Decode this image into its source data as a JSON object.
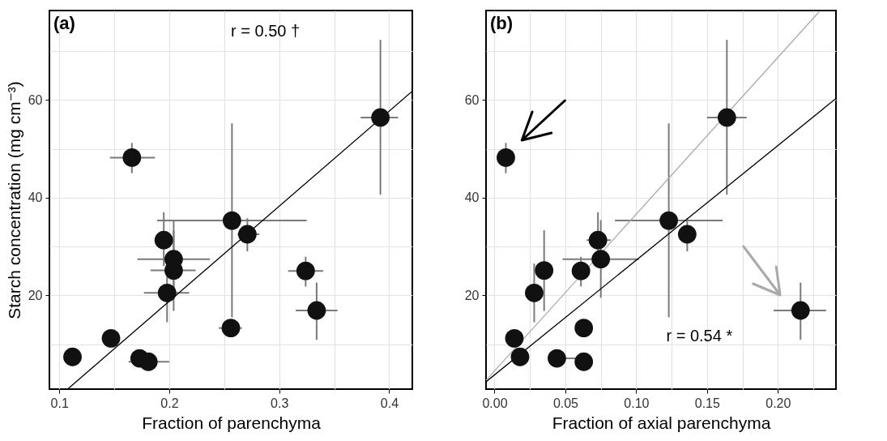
{
  "chart_data": [
    {
      "type": "scatter",
      "title": "(a)",
      "xlabel": "Fraction of parenchyma",
      "ylabel": "Starch concentration (mg cm⁻³)",
      "xlim": [
        0.091,
        0.421
      ],
      "ylim": [
        0.8,
        78.3
      ],
      "xticks": [
        0.1,
        {
          "value": 0.15,
          "label": null
        },
        0.2,
        {
          "value": 0.25,
          "label": null
        },
        0.3,
        {
          "value": 0.35,
          "label": null
        },
        0.4
      ],
      "yticks": [
        {
          "value": 10,
          "label": null
        },
        20,
        {
          "value": 30,
          "label": null
        },
        40,
        {
          "value": 50,
          "label": null
        },
        60,
        {
          "value": 70,
          "label": null
        }
      ],
      "grid": true,
      "marker": "circle",
      "annotations": [
        "r = 0.50 †"
      ],
      "series": [
        {
          "color": "#111111",
          "x": [
            0.166,
            0.392,
            0.257,
            0.271,
            0.195,
            0.204,
            0.204,
            0.324,
            0.198,
            0.147,
            0.112,
            0.173,
            0.181,
            0.256,
            0.334
          ],
          "values": [
            48.2,
            56.4,
            35.3,
            32.5,
            31.3,
            27.4,
            25.1,
            25.0,
            20.5,
            11.2,
            7.4,
            7.1,
            6.4,
            13.3,
            16.9
          ],
          "errors": [
            [
              45.0,
              51.2
            ],
            [
              40.6,
              72.3
            ],
            [
              15.5,
              55.2
            ],
            [
              29.0,
              35.8
            ],
            [
              26.0,
              37.0
            ],
            [
              19.5,
              35.4
            ],
            [
              16.8,
              33.3
            ],
            [
              21.8,
              27.9
            ],
            [
              14.5,
              26.5
            ],
            null,
            null,
            null,
            null,
            null,
            [
              10.9,
              22.6
            ]
          ],
          "xerrors": [
            [
              0.146,
              0.187
            ],
            [
              0.374,
              0.408
            ],
            [
              0.189,
              0.325
            ],
            [
              0.262,
              0.282
            ],
            null,
            [
              0.171,
              0.237
            ],
            [
              0.183,
              0.224
            ],
            [
              0.308,
              0.34
            ],
            [
              0.177,
              0.218
            ],
            null,
            null,
            null,
            [
              0.163,
              0.2
            ],
            [
              0.245,
              0.266
            ],
            [
              0.315,
              0.353
            ]
          ]
        },
        {
          "type": "line",
          "marker": "none",
          "color": "#000000",
          "x": [
            0.108,
            0.421
          ],
          "values": [
            0.9,
            61.8
          ]
        }
      ]
    },
    {
      "type": "scatter",
      "title": "(b)",
      "xlabel": "Fraction of axial parenchyma",
      "xlim": [
        -0.006,
        0.241
      ],
      "ylim": [
        0.8,
        78.3
      ],
      "xticks": [
        {
          "value": 0,
          "label": "0.00"
        },
        {
          "value": 0.025,
          "label": null
        },
        {
          "value": 0.05,
          "label": "0.05"
        },
        {
          "value": 0.075,
          "label": null
        },
        {
          "value": 0.1,
          "label": "0.10"
        },
        {
          "value": 0.125,
          "label": null
        },
        {
          "value": 0.15,
          "label": "0.15"
        },
        {
          "value": 0.175,
          "label": null
        },
        {
          "value": 0.2,
          "label": "0.20"
        },
        {
          "value": 0.225,
          "label": null
        }
      ],
      "yticks": [
        {
          "value": 10,
          "label": null
        },
        20,
        {
          "value": 30,
          "label": null
        },
        40,
        {
          "value": 50,
          "label": null
        },
        60,
        {
          "value": 70,
          "label": null
        }
      ],
      "grid": true,
      "marker": "circle",
      "annotations": [
        "r = 0.54 *"
      ],
      "series": [
        {
          "color": "#111111",
          "x": [
            0.008,
            0.164,
            0.123,
            0.136,
            0.073,
            0.075,
            0.035,
            0.061,
            0.028,
            0.014,
            0.018,
            0.044,
            0.063,
            0.063,
            0.216
          ],
          "values": [
            48.2,
            56.4,
            35.3,
            32.5,
            31.3,
            27.4,
            25.1,
            25.0,
            20.5,
            11.2,
            7.4,
            7.1,
            6.4,
            13.3,
            16.9
          ],
          "errors": [
            [
              45.0,
              51.2
            ],
            [
              40.6,
              72.3
            ],
            [
              15.5,
              55.2
            ],
            [
              29.0,
              35.8
            ],
            [
              26.0,
              37.0
            ],
            [
              19.5,
              35.4
            ],
            [
              16.8,
              33.3
            ],
            [
              21.8,
              27.9
            ],
            [
              14.5,
              26.5
            ],
            null,
            null,
            null,
            null,
            null,
            [
              10.9,
              22.6
            ]
          ],
          "xerrors": [
            null,
            [
              0.15,
              0.178
            ],
            [
              0.085,
              0.161
            ],
            null,
            [
              0.065,
              0.082
            ],
            [
              0.048,
              0.102
            ],
            null,
            null,
            null,
            null,
            null,
            [
              0.044,
              0.058
            ],
            null,
            null,
            [
              0.197,
              0.234
            ]
          ]
        },
        {
          "type": "line",
          "marker": "none",
          "color": "#000000",
          "x": [
            -0.006,
            0.241
          ],
          "values": [
            2.3,
            60.3
          ]
        },
        {
          "type": "line",
          "marker": "none",
          "color": "#aaaaaa",
          "x": [
            -0.006,
            0.229
          ],
          "values": [
            2.6,
            78.0
          ]
        }
      ]
    }
  ]
}
